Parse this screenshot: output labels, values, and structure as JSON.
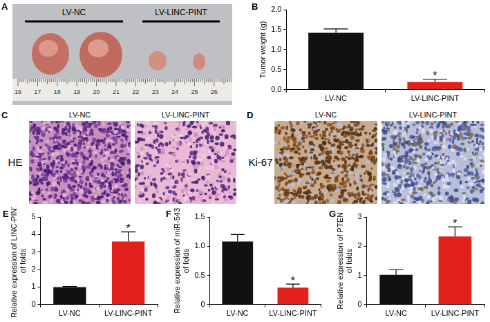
{
  "image_panels": [
    {
      "panel": "A",
      "kind": "tumor_photo",
      "groups": [
        "LV-NC",
        "LV-LINC-PINT"
      ],
      "ruler_labels": [
        16,
        17,
        18,
        19,
        20,
        21,
        22,
        23,
        24,
        25,
        26
      ]
    },
    {
      "panel": "C",
      "kind": "HE",
      "row_label": "HE",
      "columns": [
        "LV-NC",
        "LV-LINC-PINT"
      ]
    },
    {
      "panel": "D",
      "kind": "IHC",
      "row_label": "Ki-67",
      "columns": [
        "LV-NC",
        "LV-LINC-PINT"
      ]
    }
  ],
  "chart_data": [
    {
      "panel": "B",
      "type": "bar",
      "categories": [
        "LV-NC",
        "LV-LINC-PINT"
      ],
      "values": [
        1.42,
        0.19
      ],
      "errors": [
        0.1,
        0.07
      ],
      "colors": [
        "#111111",
        "#e3211c"
      ],
      "ylabel": [
        "Tumor weight (g)"
      ],
      "ylim": [
        0,
        2
      ],
      "yticks": [
        {
          "value": 0,
          "label": "0.0"
        },
        0.5,
        {
          "value": 1,
          "label": "1.0"
        },
        1.5,
        {
          "value": 2,
          "label": "2.0"
        }
      ],
      "grid": false,
      "annotations": [
        {
          "text": "*",
          "category": "LV-LINC-PINT"
        }
      ]
    },
    {
      "panel": "E",
      "type": "bar",
      "categories": [
        "LV-NC",
        "LV-LINC-PINT"
      ],
      "values": [
        1.0,
        3.6
      ],
      "errors": [
        0.03,
        0.55
      ],
      "colors": [
        "#111111",
        "#e3211c"
      ],
      "ylabel": [
        "Relative expression of LINC-PINT",
        "of folds"
      ],
      "ylim": [
        0,
        5
      ],
      "yticks": [
        0,
        1,
        2,
        3,
        4,
        5
      ],
      "grid": false,
      "annotations": [
        {
          "text": "*",
          "category": "LV-LINC-PINT"
        }
      ]
    },
    {
      "panel": "F",
      "type": "bar",
      "categories": [
        "LV-NC",
        "LV-LINC-PINT"
      ],
      "values": [
        1.08,
        0.29
      ],
      "errors": [
        0.12,
        0.06
      ],
      "colors": [
        "#111111",
        "#e3211c"
      ],
      "ylabel": [
        "Relative expression of miR-543",
        "of folds"
      ],
      "ylim": [
        0,
        1.5
      ],
      "yticks": [
        0,
        0.5,
        {
          "value": 1,
          "label": "1.0"
        },
        1.5
      ],
      "grid": false,
      "annotations": [
        {
          "text": "*",
          "category": "LV-LINC-PINT"
        }
      ]
    },
    {
      "panel": "G",
      "type": "bar",
      "categories": [
        "LV-NC",
        "LV-LINC-PINT"
      ],
      "values": [
        1.02,
        2.33
      ],
      "errors": [
        0.17,
        0.33
      ],
      "colors": [
        "#111111",
        "#e3211c"
      ],
      "ylabel": [
        "Relative expression of PTEN",
        "of folds"
      ],
      "ylim": [
        0,
        3
      ],
      "yticks": [
        0,
        1,
        2,
        3
      ],
      "grid": false,
      "annotations": [
        {
          "text": "*",
          "category": "LV-LINC-PINT"
        }
      ]
    }
  ]
}
